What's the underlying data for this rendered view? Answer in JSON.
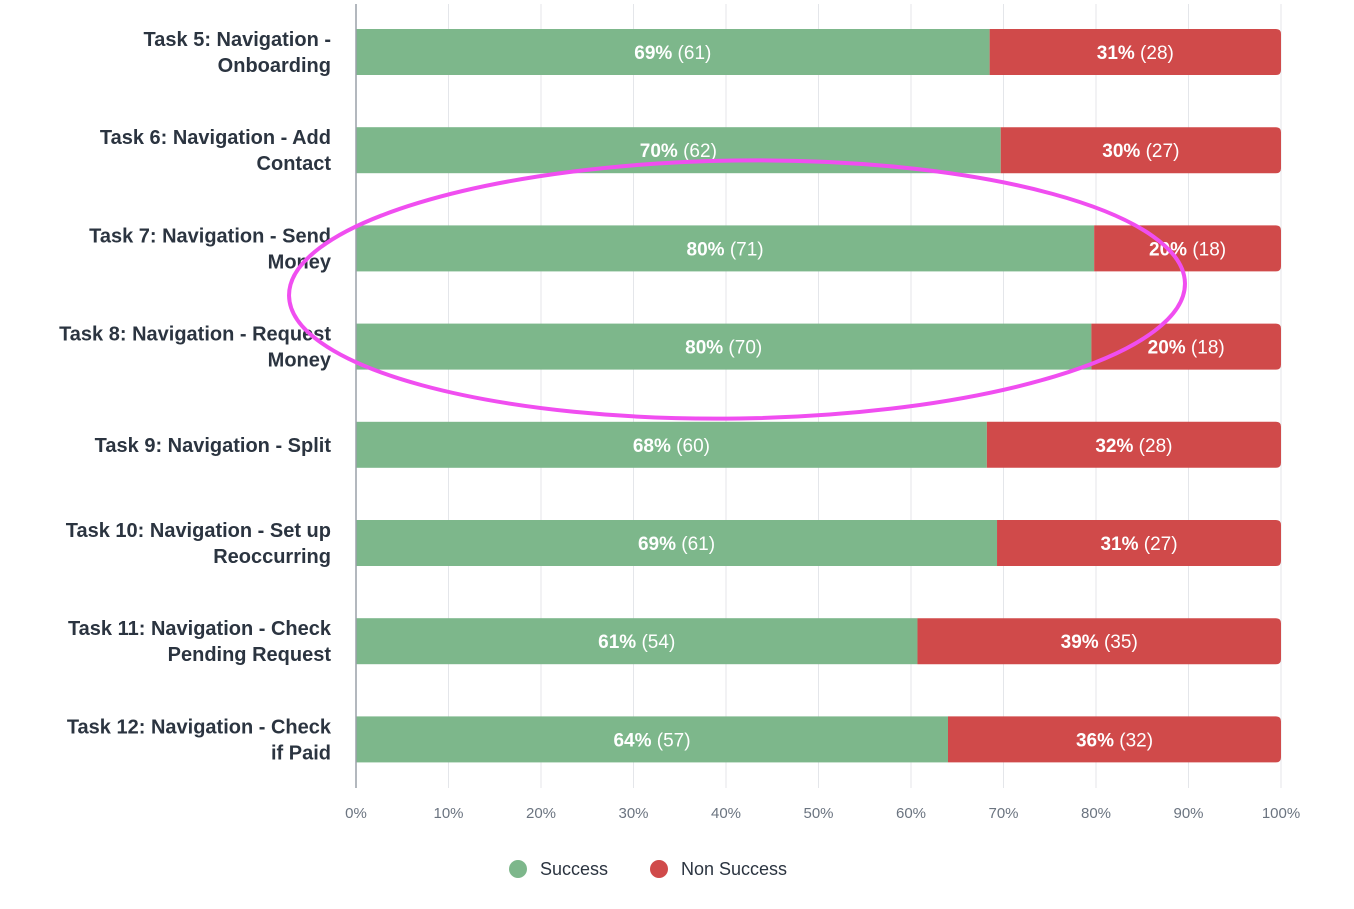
{
  "chart_data": {
    "type": "bar",
    "orientation": "horizontal",
    "stacked": true,
    "categories": [
      [
        "Task 5: Navigation -",
        "Onboarding"
      ],
      [
        "Task 6: Navigation - Add",
        "Contact"
      ],
      [
        "Task 7: Navigation - Send",
        "Money"
      ],
      [
        "Task 8: Navigation - Request",
        "Money"
      ],
      [
        "Task 9: Navigation - Split"
      ],
      [
        "Task 10: Navigation - Set up",
        "Reoccurring"
      ],
      [
        "Task 11: Navigation - Check",
        "Pending Request"
      ],
      [
        "Task 12: Navigation - Check",
        "if Paid"
      ]
    ],
    "series": [
      {
        "name": "Success",
        "color": "#7db78b",
        "percent": [
          68.5,
          69.7,
          79.8,
          79.5,
          68.2,
          69.3,
          60.7,
          64.0
        ],
        "percent_labels": [
          "69%",
          "70%",
          "80%",
          "80%",
          "68%",
          "69%",
          "61%",
          "64%"
        ],
        "counts": [
          61,
          62,
          71,
          70,
          60,
          61,
          54,
          57
        ]
      },
      {
        "name": "Non Success",
        "color": "#d04a4a",
        "percent": [
          31.5,
          30.3,
          20.2,
          20.5,
          31.8,
          30.7,
          39.3,
          36.0
        ],
        "percent_labels": [
          "31%",
          "30%",
          "20%",
          "20%",
          "32%",
          "31%",
          "39%",
          "36%"
        ],
        "counts": [
          28,
          27,
          18,
          18,
          28,
          27,
          35,
          32
        ]
      }
    ],
    "xlim": [
      0,
      100
    ],
    "x_ticks": [
      "0%",
      "10%",
      "20%",
      "30%",
      "40%",
      "50%",
      "60%",
      "70%",
      "80%",
      "90%",
      "100%"
    ],
    "grid": true,
    "legend": "bottom",
    "annotation": {
      "shape": "ellipse",
      "color": "#f04ef0",
      "highlights_categories": [
        2,
        3
      ]
    }
  }
}
